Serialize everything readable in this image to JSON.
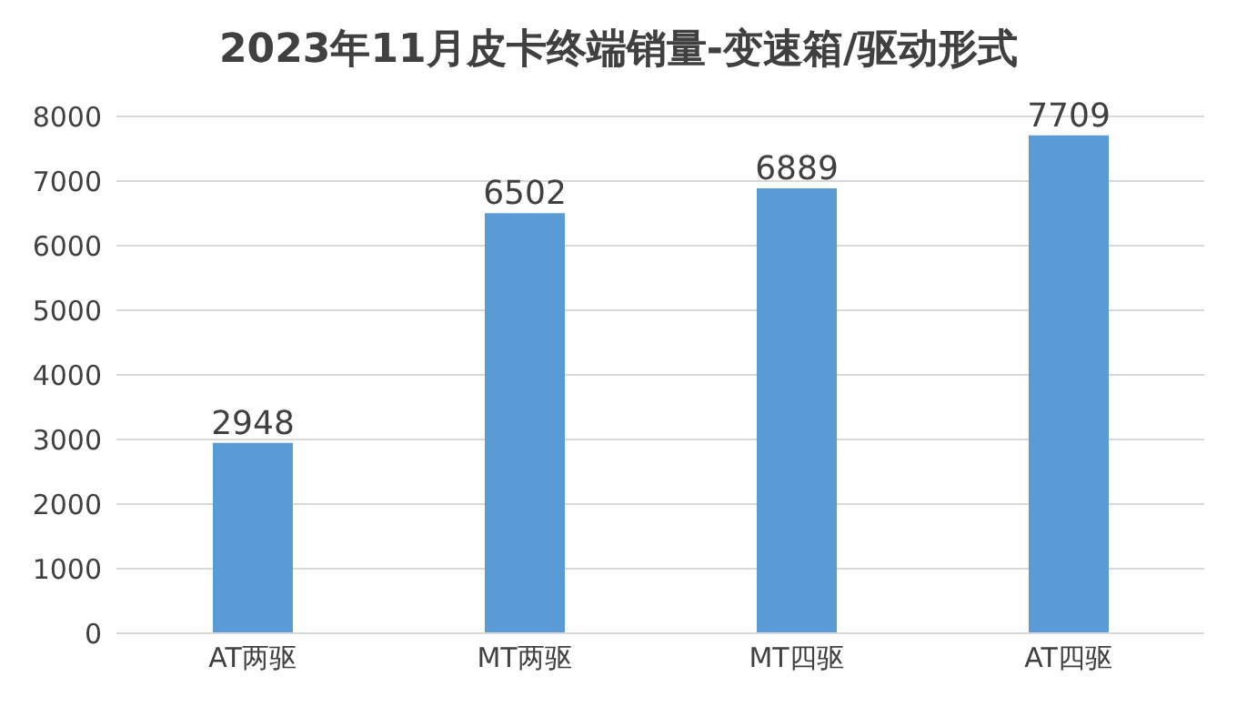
{
  "chart_data": {
    "type": "bar",
    "title": "2023年11月皮卡终端销量-变速箱/驱动形式",
    "categories": [
      "AT两驱",
      "MT两驱",
      "MT四驱",
      "AT四驱"
    ],
    "values": [
      2948,
      6502,
      6889,
      7709
    ],
    "color": "#5b9bd5",
    "ylim": [
      0,
      8000
    ],
    "yticks": [
      0,
      1000,
      2000,
      3000,
      4000,
      5000,
      6000,
      7000,
      8000
    ],
    "grid": "y",
    "data_labels": true
  }
}
